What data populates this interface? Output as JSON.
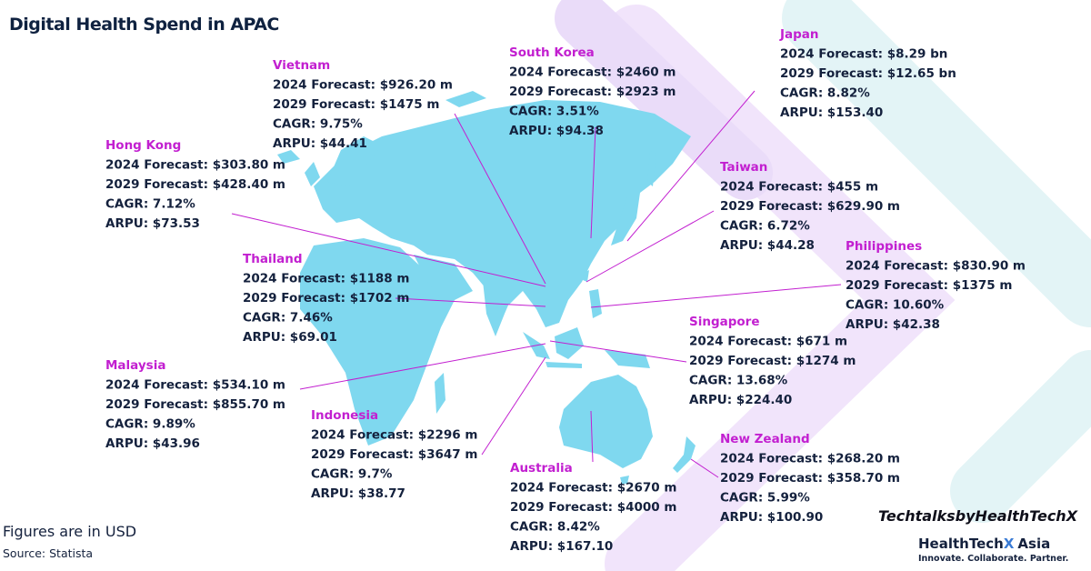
{
  "title": "Digital Health Spend in APAC",
  "countries": [
    {
      "name": "Vietnam",
      "lines": [
        "2024 Forecast: $926.20 m",
        "2029 Forecast: $1475 m",
        "CAGR: 9.75%",
        "ARPU: $44.41"
      ]
    },
    {
      "name": "South Korea",
      "lines": [
        "2024 Forecast: $2460 m",
        "2029 Forecast: $2923 m",
        "CAGR: 3.51%",
        "ARPU: $94.38"
      ]
    },
    {
      "name": "Japan",
      "lines": [
        "2024 Forecast: $8.29 bn",
        "2029 Forecast: $12.65 bn",
        "CAGR: 8.82%",
        "ARPU: $153.40"
      ]
    },
    {
      "name": "Hong Kong",
      "lines": [
        "2024 Forecast: $303.80 m",
        "2029 Forecast: $428.40 m",
        "CAGR: 7.12%",
        "ARPU: $73.53"
      ]
    },
    {
      "name": "Taiwan",
      "lines": [
        "2024 Forecast: $455 m",
        "2029 Forecast: $629.90 m",
        "CAGR: 6.72%",
        "ARPU: $44.28"
      ]
    },
    {
      "name": "Thailand",
      "lines": [
        "2024 Forecast: $1188 m",
        "2029 Forecast: $1702 m",
        "CAGR: 7.46%",
        "ARPU: $69.01"
      ]
    },
    {
      "name": "Philippines",
      "lines": [
        "2024 Forecast: $830.90 m",
        "2029 Forecast: $1375 m",
        "CAGR: 10.60%",
        "ARPU: $42.38"
      ]
    },
    {
      "name": "Singapore",
      "lines": [
        "2024 Forecast: $671 m",
        "2029 Forecast: $1274 m",
        "CAGR: 13.68%",
        "ARPU: $224.40"
      ]
    },
    {
      "name": "Malaysia",
      "lines": [
        "2024 Forecast: $534.10 m",
        "2029 Forecast: $855.70 m",
        "CAGR: 9.89%",
        "ARPU: $43.96"
      ]
    },
    {
      "name": "Indonesia",
      "lines": [
        "2024 Forecast: $2296 m",
        "2029 Forecast: $3647 m",
        "CAGR: 9.7%",
        "ARPU: $38.77"
      ]
    },
    {
      "name": "Australia",
      "lines": [
        "2024 Forecast: $2670 m",
        "2029 Forecast: $4000 m",
        "CAGR: 8.42%",
        "ARPU: $167.10"
      ]
    },
    {
      "name": "New Zealand",
      "lines": [
        "2024 Forecast: $268.20 m",
        "2029 Forecast: $358.70 m",
        "CAGR: 5.99%",
        "ARPU: $100.90"
      ]
    }
  ],
  "footer": {
    "note": "Figures are in USD",
    "source": "Source: Statista",
    "hashtag": "TechtalksbyHealthTechX",
    "logo": {
      "brand": "HealthTech",
      "mark": "X",
      "region": "Asia",
      "motto": "Innovate. Collaborate. Partner."
    }
  }
}
